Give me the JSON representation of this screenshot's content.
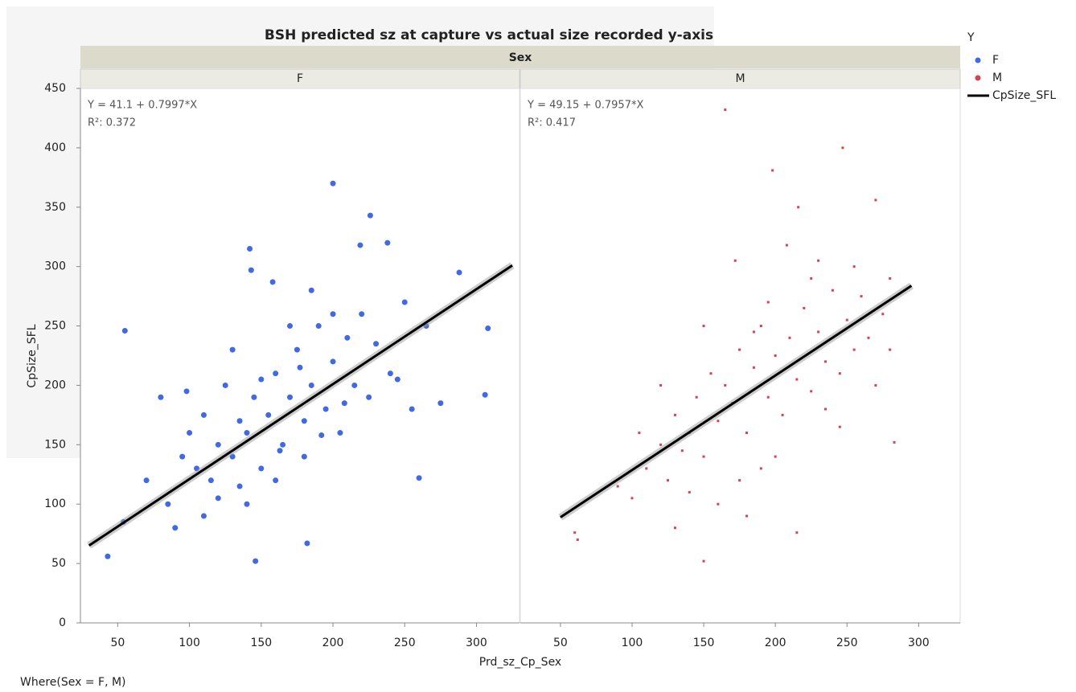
{
  "figure": {
    "title": "BSH predicted sz at capture vs actual size recorded y-axis",
    "group_title": "Sex",
    "y_label": "CpSize_SFL",
    "x_label": "Prd_sz_Cp_Sex",
    "legend_title": "Y",
    "fit_legend": "CpSize_SFL",
    "footnote": "Where(Sex = F, M)"
  },
  "chart_data": [
    {
      "type": "scatter",
      "panel": "F",
      "xlim": [
        24,
        330
      ],
      "xticks": [
        50,
        100,
        150,
        200,
        250,
        300
      ],
      "ylim": [
        0,
        450
      ],
      "yticks": [
        0,
        50,
        100,
        150,
        200,
        250,
        300,
        350,
        400,
        450
      ],
      "series": [
        {
          "name": "F",
          "color": "#4169e1",
          "marker": "circle",
          "x": [
            43,
            55,
            54,
            146,
            182,
            260,
            200,
            226,
            142,
            238,
            288,
            308,
            306,
            219,
            143,
            158,
            80,
            70,
            85,
            95,
            100,
            105,
            110,
            115,
            120,
            125,
            130,
            135,
            140,
            145,
            150,
            155,
            160,
            165,
            170,
            175,
            180,
            185,
            190,
            195,
            200,
            205,
            210,
            215,
            220,
            225,
            230,
            240,
            250,
            255,
            265,
            275,
            120,
            140,
            160,
            180,
            200,
            130,
            110,
            90,
            170,
            150,
            135,
            185,
            245,
            98,
            163,
            177,
            192,
            208
          ],
          "values": [
            56,
            246,
            85,
            52,
            67,
            122,
            370,
            343,
            315,
            320,
            295,
            248,
            192,
            318,
            297,
            287,
            190,
            120,
            100,
            140,
            160,
            130,
            175,
            120,
            150,
            200,
            140,
            170,
            160,
            190,
            130,
            175,
            210,
            150,
            190,
            230,
            170,
            200,
            250,
            180,
            220,
            160,
            240,
            200,
            260,
            190,
            235,
            210,
            270,
            180,
            250,
            185,
            105,
            100,
            120,
            140,
            260,
            230,
            90,
            80,
            250,
            205,
            115,
            280,
            205,
            195,
            145,
            215,
            158,
            185
          ]
        }
      ],
      "fit": {
        "color": "#000000",
        "x": [
          30,
          325
        ],
        "values": [
          65.1,
          301.0
        ]
      },
      "annotations": [
        "Y = 41.1 + 0.7997*X",
        "R²: 0.372"
      ]
    },
    {
      "type": "scatter",
      "panel": "M",
      "xlim": [
        22,
        329
      ],
      "xticks": [
        50,
        100,
        150,
        200,
        250,
        300
      ],
      "ylim": [
        0,
        450
      ],
      "series": [
        {
          "name": "M",
          "color": "#d6424f",
          "marker": "square",
          "x": [
            165,
            247,
            198,
            270,
            216,
            150,
            62,
            283,
            60,
            100,
            110,
            120,
            125,
            130,
            135,
            140,
            145,
            150,
            155,
            160,
            165,
            170,
            175,
            180,
            185,
            190,
            195,
            200,
            205,
            210,
            215,
            220,
            225,
            230,
            235,
            240,
            245,
            250,
            255,
            260,
            265,
            270,
            275,
            280,
            172,
            208,
            230,
            140,
            130,
            160,
            180,
            200,
            215,
            245,
            150,
            120,
            105,
            90,
            190,
            225,
            255,
            185,
            175,
            235,
            195,
            280
          ],
          "values": [
            432,
            400,
            381,
            356,
            350,
            52,
            70,
            152,
            76,
            105,
            130,
            150,
            120,
            175,
            145,
            160,
            190,
            140,
            210,
            170,
            200,
            185,
            230,
            160,
            215,
            250,
            190,
            225,
            175,
            240,
            205,
            265,
            195,
            245,
            220,
            280,
            210,
            255,
            230,
            275,
            240,
            200,
            260,
            230,
            305,
            318,
            305,
            110,
            80,
            100,
            90,
            140,
            76,
            165,
            250,
            200,
            160,
            115,
            130,
            290,
            300,
            245,
            120,
            180,
            270,
            290
          ]
        }
      ],
      "fit": {
        "color": "#000000",
        "x": [
          50,
          295
        ],
        "values": [
          88.9,
          283.9
        ]
      },
      "annotations": [
        "Y = 49.15 + 0.7957*X",
        "R²: 0.417"
      ]
    }
  ]
}
